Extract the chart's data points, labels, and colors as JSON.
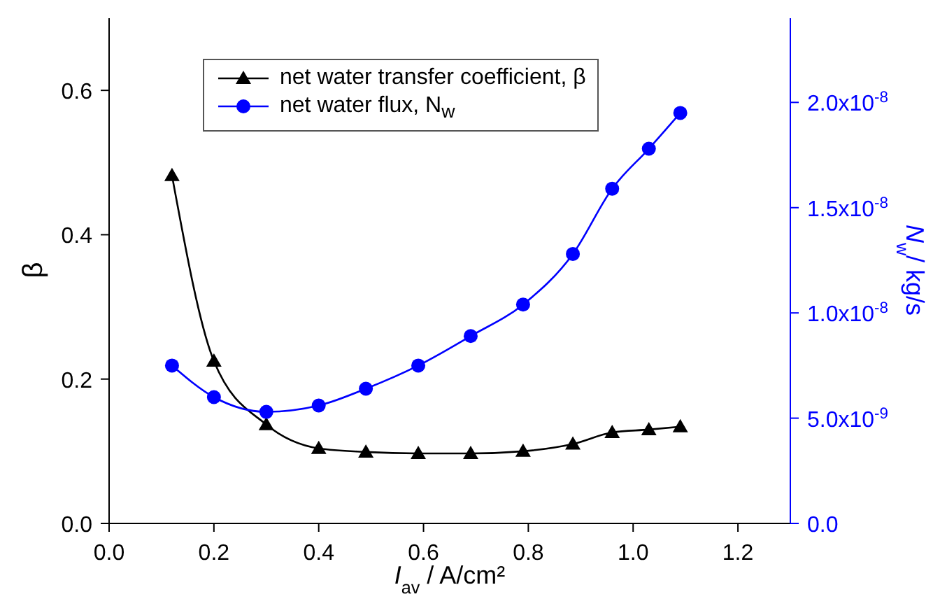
{
  "chart_data": {
    "type": "line",
    "xlabel": "I$_{av}$ / A/cm²",
    "ylabel": "β",
    "y2label": "N$_{w}$/ kg/s",
    "x": [
      0.12,
      0.2,
      0.3,
      0.4,
      0.49,
      0.59,
      0.69,
      0.79,
      0.885,
      0.96,
      1.03,
      1.09
    ],
    "series": [
      {
        "name": "net water transfer coefficient, β",
        "color": "#000000",
        "marker": "triangle",
        "values": [
          0.482,
          0.225,
          0.137,
          0.104,
          0.099,
          0.097,
          0.097,
          0.1,
          0.11,
          0.126,
          0.13,
          0.134
        ]
      },
      {
        "name": "net water flux, N$_{w}$",
        "color": "#0000ff",
        "marker": "circle",
        "axis": "y2",
        "values": [
          7.5e-09,
          6e-09,
          5.3e-09,
          5.6e-09,
          6.4e-09,
          7.5e-09,
          8.9e-09,
          1.04e-08,
          1.28e-08,
          1.59e-08,
          1.78e-08,
          1.95e-08
        ]
      }
    ],
    "xlim": [
      0,
      1.3
    ],
    "xticks": [
      {
        "value": 0,
        "label": "0.0"
      },
      0.2,
      0.4,
      0.6,
      0.8,
      {
        "value": 1,
        "label": "1.0"
      },
      1.2
    ],
    "ylim": [
      0,
      0.7
    ],
    "yticks": [
      {
        "value": 0,
        "label": "0.0"
      },
      0.2,
      0.4,
      0.6
    ],
    "y2lim": [
      0,
      2.4e-08
    ],
    "y2ticks": [
      {
        "value": 0,
        "label": "0.0"
      },
      {
        "value": 5e-09,
        "label": "5.0x10$^{-9}$"
      },
      {
        "value": 1e-08,
        "label": "1.0x10$^{-8}$"
      },
      {
        "value": 1.5e-08,
        "label": "1.5x10$^{-8}$"
      },
      {
        "value": 2e-08,
        "label": "2.0x10$^{-8}$"
      }
    ],
    "legend": "top left"
  }
}
